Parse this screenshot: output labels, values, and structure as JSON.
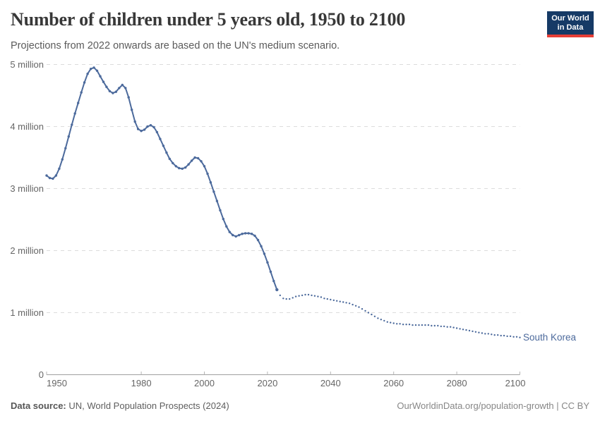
{
  "header": {
    "logo": {
      "line1": "Our World",
      "line2": "in Data"
    }
  },
  "footer": {
    "source_label": "Data source:",
    "source_text": " UN, World Population Prospects (2024)",
    "credit": "OurWorldinData.org/population-growth | CC BY"
  },
  "chart_data": {
    "type": "line",
    "title": "Number of children under 5 years old, 1950 to 2100",
    "subtitle": "Projections from 2022 onwards are based on the UN's medium scenario.",
    "entity": "South Korea",
    "line_color": "#4C6A9C",
    "xlim": [
      1950,
      2100
    ],
    "ylim": [
      0,
      5
    ],
    "grid": true,
    "x_ticks": [
      1950,
      1980,
      2000,
      2020,
      2040,
      2060,
      2080,
      2100
    ],
    "y_ticks": [
      {
        "value": 0,
        "label": "0"
      },
      {
        "value": 1,
        "label": "1 million"
      },
      {
        "value": 2,
        "label": "2 million"
      },
      {
        "value": 3,
        "label": "3 million"
      },
      {
        "value": 4,
        "label": "4 million"
      },
      {
        "value": 5,
        "label": "5 million"
      }
    ],
    "start_year": 1950,
    "projection_start_year": 2023,
    "unit": "children under 5 years old (millions)",
    "values_millions": [
      3.21,
      3.17,
      3.16,
      3.21,
      3.32,
      3.47,
      3.65,
      3.84,
      4.03,
      4.21,
      4.38,
      4.55,
      4.71,
      4.85,
      4.93,
      4.95,
      4.9,
      4.81,
      4.72,
      4.64,
      4.57,
      4.54,
      4.56,
      4.62,
      4.67,
      4.62,
      4.47,
      4.27,
      4.08,
      3.96,
      3.93,
      3.95,
      4.0,
      4.02,
      3.99,
      3.91,
      3.8,
      3.69,
      3.58,
      3.48,
      3.41,
      3.36,
      3.33,
      3.32,
      3.34,
      3.39,
      3.45,
      3.5,
      3.49,
      3.44,
      3.36,
      3.24,
      3.1,
      2.95,
      2.8,
      2.65,
      2.51,
      2.39,
      2.3,
      2.25,
      2.23,
      2.25,
      2.27,
      2.28,
      2.28,
      2.27,
      2.24,
      2.17,
      2.07,
      1.95,
      1.81,
      1.66,
      1.51,
      1.37,
      1.28,
      1.23,
      1.22,
      1.22,
      1.24,
      1.26,
      1.27,
      1.28,
      1.29,
      1.29,
      1.28,
      1.27,
      1.26,
      1.25,
      1.23,
      1.22,
      1.21,
      1.2,
      1.19,
      1.18,
      1.17,
      1.16,
      1.15,
      1.13,
      1.11,
      1.09,
      1.06,
      1.03,
      1.0,
      0.97,
      0.94,
      0.91,
      0.89,
      0.87,
      0.85,
      0.84,
      0.83,
      0.82,
      0.82,
      0.81,
      0.81,
      0.81,
      0.8,
      0.8,
      0.8,
      0.8,
      0.8,
      0.8,
      0.79,
      0.79,
      0.79,
      0.78,
      0.78,
      0.77,
      0.77,
      0.76,
      0.75,
      0.74,
      0.73,
      0.72,
      0.71,
      0.7,
      0.69,
      0.68,
      0.67,
      0.66,
      0.66,
      0.65,
      0.64,
      0.64,
      0.63,
      0.63,
      0.62,
      0.62,
      0.61,
      0.61,
      0.6
    ]
  }
}
